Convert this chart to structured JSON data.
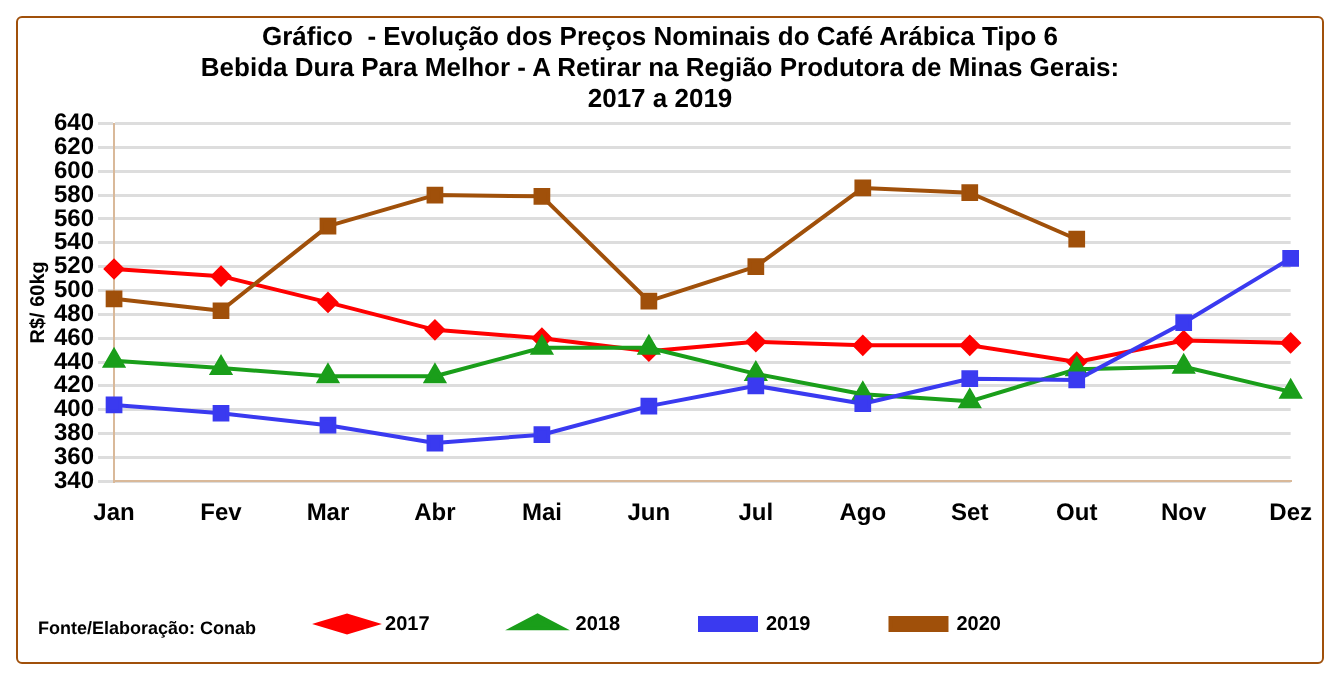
{
  "chart_data": {
    "type": "line",
    "title": "Gráfico  - Evolução dos Preços Nominais do Café Arábica Tipo 6\nBebida Dura Para Melhor - A Retirar na Região Produtora de Minas Gerais:\n2017 a 2019",
    "ylabel": "R$/ 60kg",
    "annotations": [
      "Fonte/Elaboração: Conab"
    ],
    "categories": [
      "Jan",
      "Fev",
      "Mar",
      "Abr",
      "Mai",
      "Jun",
      "Jul",
      "Ago",
      "Set",
      "Out",
      "Nov",
      "Dez"
    ],
    "series": [
      {
        "name": "2017",
        "color": "#ff0000",
        "marker": "diamond",
        "values": [
          518,
          512,
          490,
          467,
          460,
          449,
          457,
          454,
          454,
          440,
          458,
          456
        ]
      },
      {
        "name": "2018",
        "color": "#1a9e1a",
        "marker": "triangle",
        "values": [
          441,
          435,
          428,
          428,
          452,
          452,
          430,
          413,
          407,
          434,
          436,
          415
        ]
      },
      {
        "name": "2019",
        "color": "#3a3af0",
        "marker": "square",
        "values": [
          404,
          397,
          387,
          372,
          379,
          403,
          420,
          405,
          426,
          425,
          473,
          527
        ]
      },
      {
        "name": "2020",
        "color": "#a0500a",
        "marker": "square",
        "values": [
          493,
          483,
          554,
          580,
          579,
          491,
          520,
          586,
          582,
          543,
          null,
          null
        ]
      }
    ],
    "ylim": [
      340,
      640
    ],
    "yticks": [
      340,
      360,
      380,
      400,
      420,
      440,
      460,
      480,
      500,
      520,
      540,
      560,
      580,
      600,
      620,
      640
    ],
    "grid": "y",
    "legend": "bottom"
  }
}
